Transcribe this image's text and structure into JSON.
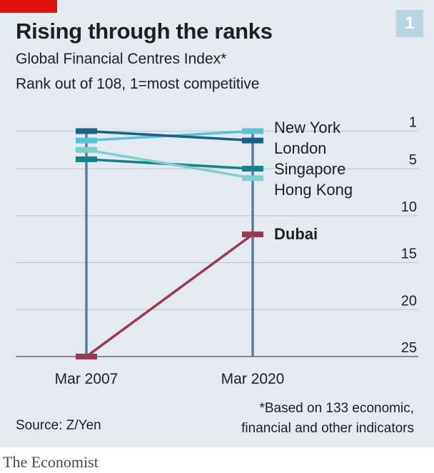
{
  "title": "Rising through the ranks",
  "subtitle": "Global Financial Centres Index*",
  "subtitle2": "Rank out of 108, 1=most competitive",
  "badge": "1",
  "footnote": "*Based on 133 economic,\nfinancial and other indicators",
  "source": "Source: Z/Yen",
  "brand": "The Economist",
  "colors": {
    "background": "#e3ebf0",
    "brand_red": "#e3120b",
    "badge": "#b9d4e3",
    "post": "#5b7e92",
    "grid": "#b9c3c9"
  },
  "chart_data": {
    "type": "line",
    "x": [
      "Mar 2007",
      "Mar 2020"
    ],
    "y_axis": {
      "ticks": [
        1,
        5,
        10,
        15,
        20,
        25
      ],
      "range": [
        1,
        25
      ],
      "inverted": true,
      "side": "right"
    },
    "series": [
      {
        "name": "New York",
        "values": [
          2,
          1
        ],
        "color": "#55c4d9"
      },
      {
        "name": "London",
        "values": [
          1,
          2
        ],
        "color": "#1b5f8c"
      },
      {
        "name": "Singapore",
        "values": [
          4,
          5
        ],
        "color": "#13828a"
      },
      {
        "name": "Hong Kong",
        "values": [
          3,
          6
        ],
        "color": "#7fcfcf"
      },
      {
        "name": "Dubai",
        "values": [
          25,
          12
        ],
        "color": "#9c3852",
        "bold": true
      }
    ]
  }
}
